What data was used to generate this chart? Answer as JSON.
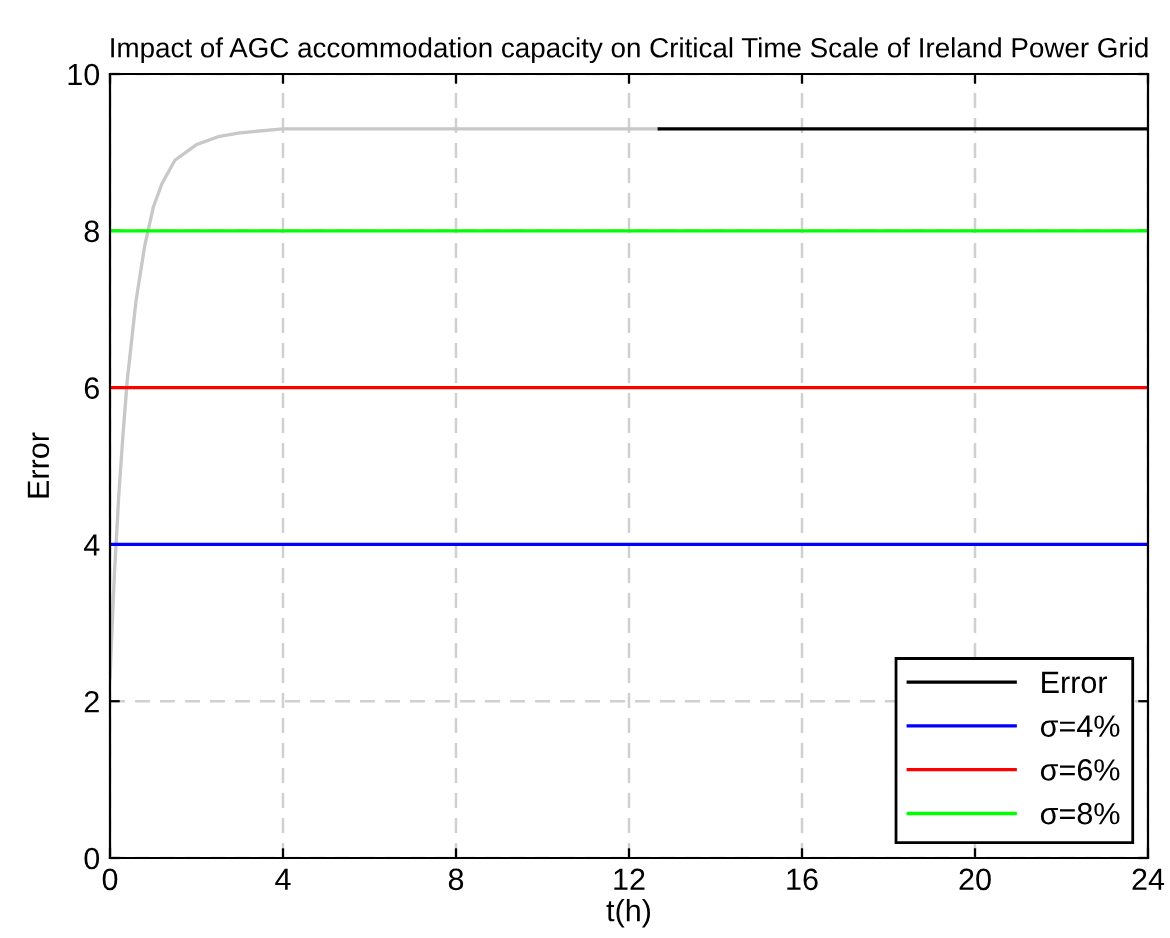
{
  "chart_data": {
    "type": "line",
    "title": "Impact of AGC accommodation capacity on Critical Time Scale of Ireland Power Grid",
    "xlabel": "t(h)",
    "ylabel": "Error",
    "xlim": [
      0,
      24
    ],
    "xticks": [
      0,
      4,
      8,
      12,
      16,
      20,
      24
    ],
    "ylim": [
      0,
      10
    ],
    "yticks": [
      0,
      2,
      4,
      6,
      8,
      10
    ],
    "grid": true,
    "legend": "bottom right",
    "line_style": "solid",
    "series": [
      {
        "color": "#c8c8c8",
        "x": [
          0,
          0.1,
          0.2,
          0.3,
          0.4,
          0.5,
          0.6,
          0.8,
          1.0,
          1.2,
          1.5,
          2.0,
          2.5,
          3.0,
          4.0,
          12.7
        ],
        "values": [
          2.3,
          3.6,
          4.6,
          5.4,
          6.1,
          6.6,
          7.1,
          7.8,
          8.3,
          8.6,
          8.9,
          9.1,
          9.2,
          9.25,
          9.3,
          9.3
        ]
      },
      {
        "name": "Error",
        "color": "#000000",
        "x": [
          12.7,
          24
        ],
        "values": [
          9.3,
          9.3
        ]
      },
      {
        "name": "σ=4%",
        "color": "#0000ff",
        "x": [
          0,
          24
        ],
        "values": [
          4,
          4
        ]
      },
      {
        "name": "σ=6%",
        "color": "#ff0000",
        "x": [
          0,
          24
        ],
        "values": [
          6,
          6
        ]
      },
      {
        "name": "σ=8%",
        "color": "#00ff00",
        "x": [
          0,
          24
        ],
        "values": [
          8,
          8
        ]
      }
    ]
  }
}
